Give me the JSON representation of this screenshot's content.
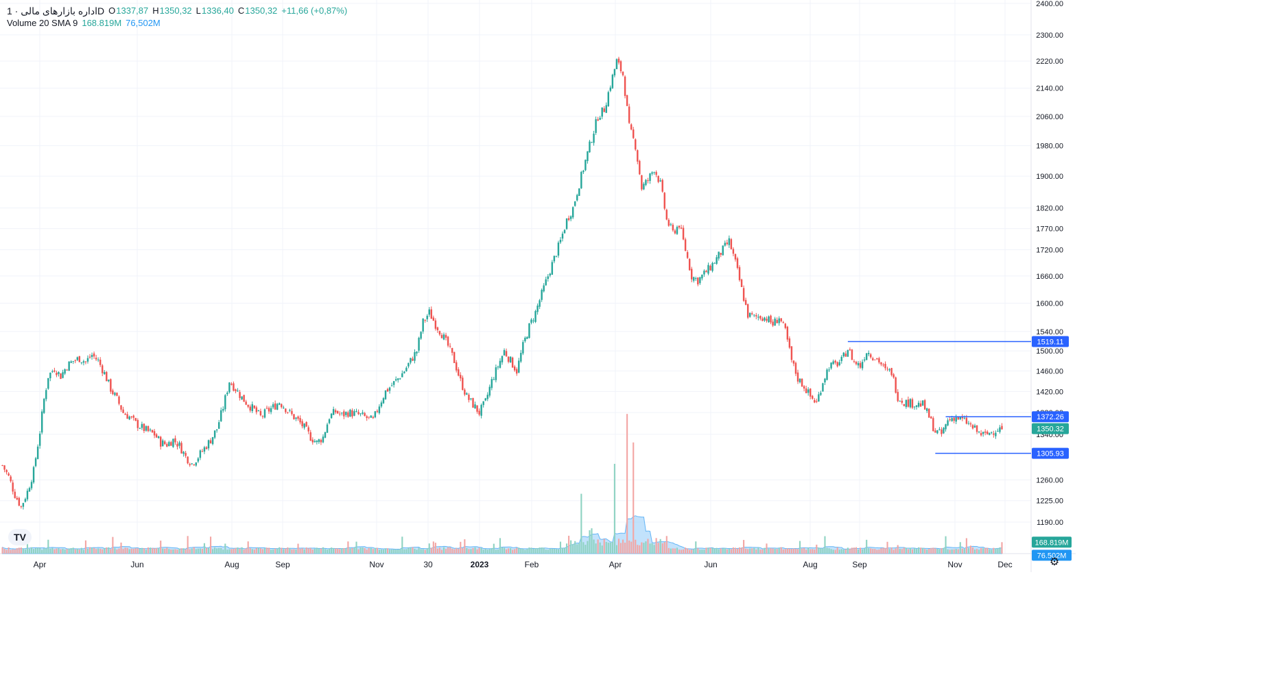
{
  "legend": {
    "symbol": "اداره بازارهای مالی · 1D",
    "o_label": "O",
    "o_value": "1337,87",
    "h_label": "H",
    "h_value": "1350,32",
    "l_label": "L",
    "l_value": "1336,40",
    "c_label": "C",
    "c_value": "1350,32",
    "change": "+11,66 (+0,87%)",
    "volume_label": "Volume 20 SMA 9",
    "volume_value": "168.819M",
    "sma_value": "76,502M"
  },
  "logo_text": "TV",
  "settings_icon": "gear-icon",
  "colors": {
    "up": "#26a69a",
    "down": "#ef5350",
    "up_volume": "#8fd3c2",
    "down_volume": "#f3a6a4",
    "sma_fill": "#90caf9",
    "level_line": "#2962ff",
    "price_badge": "#26a69a"
  },
  "chart_data": {
    "type": "candlestick",
    "title": "",
    "y_scale": "log",
    "ylim": [
      1160,
      2400
    ],
    "y_ticks": [
      "2400.00",
      "2300.00",
      "2220.00",
      "2140.00",
      "2060.00",
      "1980.00",
      "1900.00",
      "1820.00",
      "1770.00",
      "1720.00",
      "1660.00",
      "1600.00",
      "1540.00",
      "1500.00",
      "1460.00",
      "1420.00",
      "1380.00",
      "1340.00",
      "1260.00",
      "1225.00",
      "1190.00"
    ],
    "x_ticks": [
      "Apr",
      "Jun",
      "Aug",
      "Sep",
      "Nov",
      "30",
      "2023",
      "Feb",
      "Apr",
      "Jun",
      "Aug",
      "Sep",
      "Nov",
      "Dec"
    ],
    "x_tick_bold": "2023",
    "series_anchor_close": [
      [
        0,
        1285
      ],
      [
        3,
        1265
      ],
      [
        6,
        1235
      ],
      [
        9,
        1215
      ],
      [
        12,
        1240
      ],
      [
        15,
        1275
      ],
      [
        18,
        1345
      ],
      [
        20,
        1405
      ],
      [
        22,
        1450
      ],
      [
        25,
        1465
      ],
      [
        28,
        1450
      ],
      [
        31,
        1470
      ],
      [
        34,
        1480
      ],
      [
        37,
        1485
      ],
      [
        40,
        1478
      ],
      [
        43,
        1492
      ],
      [
        46,
        1480
      ],
      [
        49,
        1455
      ],
      [
        52,
        1425
      ],
      [
        55,
        1405
      ],
      [
        58,
        1380
      ],
      [
        61,
        1372
      ],
      [
        64,
        1360
      ],
      [
        67,
        1352
      ],
      [
        70,
        1345
      ],
      [
        73,
        1340
      ],
      [
        76,
        1325
      ],
      [
        79,
        1322
      ],
      [
        82,
        1330
      ],
      [
        85,
        1320
      ],
      [
        88,
        1300
      ],
      [
        91,
        1288
      ],
      [
        94,
        1300
      ],
      [
        97,
        1315
      ],
      [
        100,
        1330
      ],
      [
        103,
        1350
      ],
      [
        106,
        1390
      ],
      [
        109,
        1440
      ],
      [
        112,
        1425
      ],
      [
        115,
        1408
      ],
      [
        118,
        1395
      ],
      [
        121,
        1385
      ],
      [
        124,
        1372
      ],
      [
        127,
        1382
      ],
      [
        130,
        1390
      ],
      [
        133,
        1400
      ],
      [
        136,
        1388
      ],
      [
        139,
        1375
      ],
      [
        142,
        1365
      ],
      [
        145,
        1352
      ],
      [
        148,
        1335
      ],
      [
        151,
        1325
      ],
      [
        154,
        1335
      ],
      [
        157,
        1372
      ],
      [
        160,
        1382
      ],
      [
        163,
        1375
      ],
      [
        166,
        1380
      ],
      [
        169,
        1378
      ],
      [
        172,
        1375
      ],
      [
        175,
        1370
      ],
      [
        178,
        1365
      ],
      [
        181,
        1395
      ],
      [
        184,
        1420
      ],
      [
        187,
        1432
      ],
      [
        190,
        1445
      ],
      [
        193,
        1460
      ],
      [
        196,
        1480
      ],
      [
        199,
        1500
      ],
      [
        202,
        1560
      ],
      [
        205,
        1580
      ],
      [
        208,
        1555
      ],
      [
        211,
        1535
      ],
      [
        214,
        1510
      ],
      [
        217,
        1480
      ],
      [
        220,
        1440
      ],
      [
        223,
        1410
      ],
      [
        226,
        1395
      ],
      [
        229,
        1380
      ],
      [
        232,
        1400
      ],
      [
        235,
        1440
      ],
      [
        238,
        1470
      ],
      [
        241,
        1500
      ],
      [
        244,
        1480
      ],
      [
        247,
        1460
      ],
      [
        250,
        1510
      ],
      [
        253,
        1550
      ],
      [
        256,
        1580
      ],
      [
        259,
        1620
      ],
      [
        262,
        1660
      ],
      [
        265,
        1700
      ],
      [
        268,
        1740
      ],
      [
        271,
        1790
      ],
      [
        274,
        1820
      ],
      [
        277,
        1880
      ],
      [
        280,
        1940
      ],
      [
        283,
        2000
      ],
      [
        286,
        2060
      ],
      [
        289,
        2080
      ],
      [
        292,
        2150
      ],
      [
        295,
        2220
      ],
      [
        298,
        2180
      ],
      [
        301,
        2030
      ],
      [
        304,
        1980
      ],
      [
        307,
        1870
      ],
      [
        310,
        1890
      ],
      [
        313,
        1920
      ],
      [
        316,
        1880
      ],
      [
        319,
        1790
      ],
      [
        322,
        1760
      ],
      [
        325,
        1780
      ],
      [
        328,
        1720
      ],
      [
        331,
        1660
      ],
      [
        334,
        1650
      ],
      [
        337,
        1665
      ],
      [
        340,
        1680
      ],
      [
        343,
        1700
      ],
      [
        346,
        1720
      ],
      [
        349,
        1740
      ],
      [
        352,
        1690
      ],
      [
        355,
        1630
      ],
      [
        358,
        1575
      ],
      [
        361,
        1570
      ],
      [
        364,
        1572
      ],
      [
        367,
        1568
      ],
      [
        370,
        1555
      ],
      [
        373,
        1570
      ],
      [
        376,
        1540
      ],
      [
        379,
        1480
      ],
      [
        382,
        1445
      ],
      [
        385,
        1430
      ],
      [
        388,
        1410
      ],
      [
        391,
        1398
      ],
      [
        394,
        1440
      ],
      [
        397,
        1470
      ],
      [
        400,
        1472
      ],
      [
        403,
        1480
      ],
      [
        406,
        1505
      ],
      [
        409,
        1478
      ],
      [
        412,
        1470
      ],
      [
        415,
        1500
      ],
      [
        418,
        1490
      ],
      [
        421,
        1480
      ],
      [
        424,
        1460
      ],
      [
        427,
        1458
      ],
      [
        430,
        1410
      ],
      [
        433,
        1400
      ],
      [
        436,
        1398
      ],
      [
        439,
        1396
      ],
      [
        442,
        1395
      ],
      [
        445,
        1372
      ],
      [
        448,
        1345
      ],
      [
        451,
        1340
      ],
      [
        454,
        1365
      ],
      [
        457,
        1372
      ],
      [
        460,
        1368
      ],
      [
        463,
        1362
      ],
      [
        466,
        1352
      ],
      [
        469,
        1342
      ],
      [
        472,
        1338
      ],
      [
        475,
        1345
      ],
      [
        478,
        1350
      ]
    ],
    "levels": [
      {
        "price": 1519.11,
        "label": "1519.11",
        "start_bar": 406
      },
      {
        "price": 1372.26,
        "label": "1372.26",
        "start_bar": 453
      },
      {
        "price": 1305.93,
        "label": "1305.93",
        "start_bar": 448
      }
    ],
    "last_price": {
      "price": 1350.32,
      "label": "1350.32"
    },
    "volume_badges": {
      "volume": "168.819M",
      "sma": "76.502M"
    },
    "volume_max_M": 2100
  }
}
